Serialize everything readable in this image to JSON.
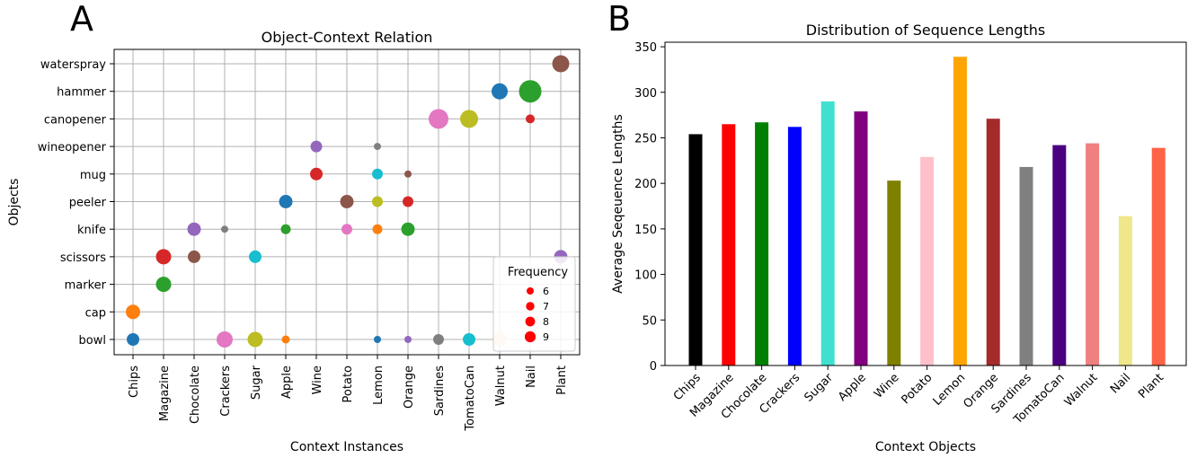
{
  "panels": {
    "a_letter": "A",
    "b_letter": "B"
  },
  "chart_data": [
    {
      "type": "scatter",
      "title": "Object-Context Relation",
      "xlabel": "Context Instances",
      "ylabel": "Objects",
      "categories_x": [
        "Chips",
        "Magazine",
        "Chocolate",
        "Crackers",
        "Sugar",
        "Apple",
        "Wine",
        "Potato",
        "Lemon",
        "Orange",
        "Sardines",
        "TomatoCan",
        "Walnut",
        "Nail",
        "Plant"
      ],
      "categories_y": [
        "bowl",
        "cap",
        "marker",
        "scissors",
        "knife",
        "peeler",
        "mug",
        "wineopener",
        "canopener",
        "hammer",
        "waterspray"
      ],
      "grid": true,
      "legend": {
        "title": "Frequency",
        "placement": "lower-right",
        "entries": [
          {
            "label": "6",
            "value": 6
          },
          {
            "label": "7",
            "value": 7
          },
          {
            "label": "8",
            "value": 8
          },
          {
            "label": "9",
            "value": 9
          }
        ],
        "color": "#ff0000"
      },
      "points": [
        {
          "x": "Chips",
          "y": "bowl",
          "size": 9,
          "color": "#1f77b4"
        },
        {
          "x": "Chips",
          "y": "cap",
          "size": 11,
          "color": "#ff7f0e"
        },
        {
          "x": "Magazine",
          "y": "marker",
          "size": 12,
          "color": "#2ca02c"
        },
        {
          "x": "Magazine",
          "y": "scissors",
          "size": 12,
          "color": "#d62728"
        },
        {
          "x": "Chocolate",
          "y": "scissors",
          "size": 9,
          "color": "#8c564b"
        },
        {
          "x": "Chocolate",
          "y": "knife",
          "size": 10,
          "color": "#9467bd"
        },
        {
          "x": "Crackers",
          "y": "bowl",
          "size": 13,
          "color": "#e377c2"
        },
        {
          "x": "Crackers",
          "y": "knife",
          "size": 3,
          "color": "#7f7f7f"
        },
        {
          "x": "Sugar",
          "y": "bowl",
          "size": 12,
          "color": "#bcbd22"
        },
        {
          "x": "Sugar",
          "y": "scissors",
          "size": 9,
          "color": "#17becf"
        },
        {
          "x": "Apple",
          "y": "bowl",
          "size": 4,
          "color": "#ff7f0e"
        },
        {
          "x": "Apple",
          "y": "knife",
          "size": 6,
          "color": "#2ca02c"
        },
        {
          "x": "Apple",
          "y": "peeler",
          "size": 10,
          "color": "#1f77b4"
        },
        {
          "x": "Wine",
          "y": "mug",
          "size": 9,
          "color": "#d62728"
        },
        {
          "x": "Wine",
          "y": "wineopener",
          "size": 8,
          "color": "#9467bd"
        },
        {
          "x": "Potato",
          "y": "knife",
          "size": 7,
          "color": "#e377c2"
        },
        {
          "x": "Potato",
          "y": "peeler",
          "size": 10,
          "color": "#8c564b"
        },
        {
          "x": "Lemon",
          "y": "bowl",
          "size": 3,
          "color": "#1f77b4"
        },
        {
          "x": "Lemon",
          "y": "knife",
          "size": 6,
          "color": "#ff7f0e"
        },
        {
          "x": "Lemon",
          "y": "peeler",
          "size": 7,
          "color": "#bcbd22"
        },
        {
          "x": "Lemon",
          "y": "mug",
          "size": 7,
          "color": "#17becf"
        },
        {
          "x": "Lemon",
          "y": "wineopener",
          "size": 3,
          "color": "#7f7f7f"
        },
        {
          "x": "Orange",
          "y": "bowl",
          "size": 3,
          "color": "#9467bd"
        },
        {
          "x": "Orange",
          "y": "knife",
          "size": 10,
          "color": "#2ca02c"
        },
        {
          "x": "Orange",
          "y": "peeler",
          "size": 7,
          "color": "#d62728"
        },
        {
          "x": "Orange",
          "y": "mug",
          "size": 3,
          "color": "#8c564b"
        },
        {
          "x": "Sardines",
          "y": "bowl",
          "size": 7,
          "color": "#7f7f7f"
        },
        {
          "x": "Sardines",
          "y": "canopener",
          "size": 17,
          "color": "#e377c2"
        },
        {
          "x": "TomatoCan",
          "y": "bowl",
          "size": 9,
          "color": "#17becf"
        },
        {
          "x": "TomatoCan",
          "y": "canopener",
          "size": 15,
          "color": "#bcbd22"
        },
        {
          "x": "Walnut",
          "y": "bowl",
          "size": 11,
          "color": "#f4d3b5"
        },
        {
          "x": "Walnut",
          "y": "hammer",
          "size": 13,
          "color": "#1f77b4"
        },
        {
          "x": "Nail",
          "y": "canopener",
          "size": 5,
          "color": "#d62728"
        },
        {
          "x": "Nail",
          "y": "hammer",
          "size": 20,
          "color": "#2ca02c"
        },
        {
          "x": "Plant",
          "y": "scissors",
          "size": 10,
          "color": "#9467bd"
        },
        {
          "x": "Plant",
          "y": "waterspray",
          "size": 14,
          "color": "#8c564b"
        }
      ]
    },
    {
      "type": "bar",
      "title": "Distribution of Sequence Lengths",
      "xlabel": "Context Objects",
      "ylabel": "Average Seqeuence Lengths",
      "ylim": [
        0,
        355
      ],
      "yticks": [
        "0",
        "50",
        "100",
        "150",
        "200",
        "250",
        "300",
        "350"
      ],
      "grid": false,
      "categories": [
        "Chips",
        "Magazine",
        "Chocolate",
        "Crackers",
        "Sugar",
        "Apple",
        "Wine",
        "Potato",
        "Lemon",
        "Orange",
        "Sardines",
        "TomatoCan",
        "Walnut",
        "Nail",
        "Plant"
      ],
      "values": [
        254,
        265,
        267,
        262,
        290,
        279,
        203,
        229,
        339,
        271,
        218,
        242,
        244,
        164,
        239
      ],
      "colors": [
        "#000000",
        "#ff0000",
        "#008000",
        "#0000ff",
        "#40e0d0",
        "#800080",
        "#808000",
        "#ffc0cb",
        "#ffa500",
        "#a52a2a",
        "#808080",
        "#4b0082",
        "#f08080",
        "#f0e68c",
        "#ff6347"
      ]
    }
  ]
}
